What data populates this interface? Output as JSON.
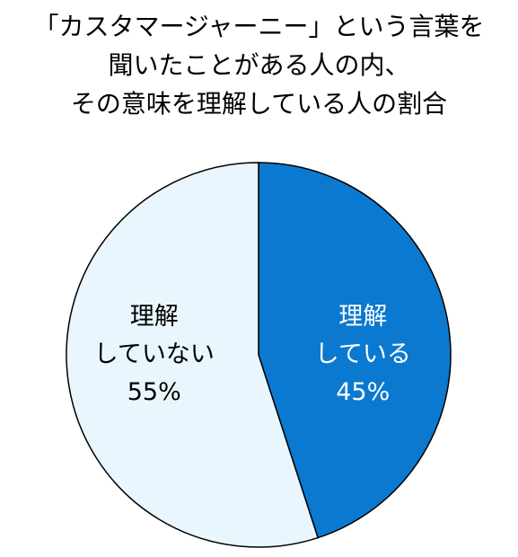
{
  "chart_data": {
    "type": "pie",
    "title": "「カスタマージャーニー」という言葉を\n聞いたことがある人の内、\nその意味を理解している人の割合",
    "categories": [
      "理解\nしている",
      "理解\nしていない"
    ],
    "values": [
      45,
      55
    ],
    "value_labels": [
      "45%",
      "55%"
    ],
    "colors": [
      "#0b79cf",
      "#e9f6fd"
    ],
    "label_colors": [
      "#ffffff",
      "#000000"
    ]
  }
}
